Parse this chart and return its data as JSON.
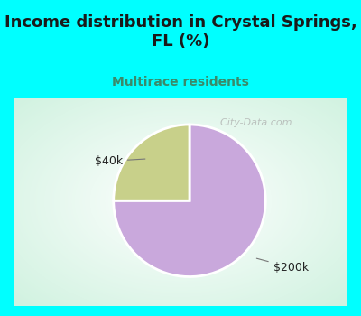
{
  "title": "Income distribution in Crystal Springs,\nFL (%)",
  "subtitle": "Multirace residents",
  "title_color": "#1a1a1a",
  "subtitle_color": "#3a8a6a",
  "background_color": "#00FFFF",
  "chart_bg_color": "#e8f5ee",
  "slices": [
    75,
    25
  ],
  "labels": [
    "$200k",
    "$40k"
  ],
  "slice_colors": [
    "#C9A8DC",
    "#C8D08A"
  ],
  "watermark": "  City-Data.com",
  "watermark_color": "#aaaaaa",
  "title_fontsize": 13,
  "subtitle_fontsize": 10
}
